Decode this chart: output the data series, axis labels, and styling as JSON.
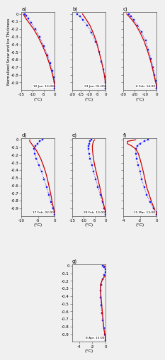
{
  "panels": [
    {
      "label": "a)",
      "date": "10 Jan. 13:00",
      "xlim": [
        -15,
        0
      ],
      "xticks": [
        -15,
        -10,
        -5,
        0
      ],
      "red_x": [
        -14.2,
        -13.8,
        -13.0,
        -11.5,
        -9.5,
        -7.5,
        -5.5,
        -3.8,
        -2.5,
        -1.5,
        -0.8,
        -0.3,
        -0.1,
        -0.05
      ],
      "red_y": [
        0.0,
        -0.02,
        -0.06,
        -0.12,
        -0.2,
        -0.3,
        -0.42,
        -0.54,
        -0.65,
        -0.75,
        -0.83,
        -0.9,
        -0.95,
        -0.98
      ],
      "blue_x": [
        -13.5,
        -13.0,
        -12.0,
        -10.5,
        -8.8,
        -6.8,
        -5.0,
        -3.3,
        -2.0,
        -1.1,
        -0.5,
        -0.2,
        -0.1,
        -0.05
      ],
      "blue_y": [
        0.0,
        -0.02,
        -0.06,
        -0.12,
        -0.2,
        -0.3,
        -0.42,
        -0.54,
        -0.65,
        -0.75,
        -0.83,
        -0.9,
        -0.95,
        -0.98
      ]
    },
    {
      "label": "b)",
      "date": "23 Jan. 01:00",
      "xlim": [
        -20,
        0
      ],
      "xticks": [
        -20,
        -15,
        -10,
        -5,
        0
      ],
      "red_x": [
        -14.0,
        -13.0,
        -11.5,
        -9.5,
        -7.5,
        -5.5,
        -4.0,
        -2.5,
        -1.5,
        -0.7,
        -0.3,
        -0.1,
        -0.05
      ],
      "red_y": [
        0.0,
        -0.03,
        -0.08,
        -0.15,
        -0.25,
        -0.37,
        -0.5,
        -0.63,
        -0.73,
        -0.82,
        -0.9,
        -0.95,
        -0.98
      ],
      "blue_x": [
        -17.0,
        -15.5,
        -13.5,
        -11.0,
        -8.5,
        -6.0,
        -4.0,
        -2.5,
        -1.4,
        -0.6,
        -0.25,
        -0.1,
        -0.05
      ],
      "blue_y": [
        0.0,
        -0.03,
        -0.08,
        -0.15,
        -0.25,
        -0.37,
        -0.5,
        -0.63,
        -0.73,
        -0.82,
        -0.9,
        -0.95,
        -0.98
      ]
    },
    {
      "label": "c)",
      "date": "6 Feb. 14:00",
      "xlim": [
        -30,
        0
      ],
      "xticks": [
        -30,
        -20,
        -10,
        0
      ],
      "red_x": [
        -27.0,
        -25.0,
        -22.0,
        -18.5,
        -15.0,
        -11.5,
        -8.5,
        -6.0,
        -4.0,
        -2.5,
        -1.2,
        -0.4,
        -0.1,
        -0.05
      ],
      "red_y": [
        0.0,
        -0.03,
        -0.08,
        -0.15,
        -0.24,
        -0.35,
        -0.47,
        -0.59,
        -0.7,
        -0.8,
        -0.88,
        -0.93,
        -0.96,
        -0.98
      ],
      "blue_x": [
        -25.0,
        -23.0,
        -20.5,
        -17.0,
        -13.5,
        -10.0,
        -7.5,
        -5.0,
        -3.2,
        -1.8,
        -0.8,
        -0.3,
        -0.1,
        -0.05
      ],
      "blue_y": [
        0.0,
        -0.03,
        -0.08,
        -0.15,
        -0.24,
        -0.35,
        -0.47,
        -0.59,
        -0.7,
        -0.8,
        -0.88,
        -0.93,
        -0.96,
        -0.98
      ]
    },
    {
      "label": "d)",
      "date": "17 Feb. 02:00",
      "xlim": [
        -10,
        0
      ],
      "xticks": [
        -10,
        -5,
        0
      ],
      "red_x": [
        -7.5,
        -7.5,
        -7.0,
        -6.5,
        -5.8,
        -5.0,
        -4.2,
        -3.5,
        -2.8,
        -2.2,
        -1.7,
        -1.2,
        -0.8,
        -0.4,
        -0.1,
        -0.05
      ],
      "red_y": [
        0.0,
        -0.02,
        -0.05,
        -0.08,
        -0.12,
        -0.18,
        -0.25,
        -0.33,
        -0.42,
        -0.52,
        -0.62,
        -0.72,
        -0.82,
        -0.9,
        -0.95,
        -0.98
      ],
      "blue_x": [
        -3.8,
        -4.5,
        -5.2,
        -5.8,
        -6.2,
        -6.0,
        -5.5,
        -4.8,
        -4.0,
        -3.2,
        -2.5,
        -1.8,
        -1.2,
        -0.6,
        -0.2,
        -0.05
      ],
      "blue_y": [
        0.0,
        -0.02,
        -0.05,
        -0.08,
        -0.12,
        -0.18,
        -0.25,
        -0.33,
        -0.42,
        -0.52,
        -0.62,
        -0.72,
        -0.82,
        -0.9,
        -0.95,
        -0.98
      ]
    },
    {
      "label": "e)",
      "date": "29 Feb. 13:00",
      "xlim": [
        -15,
        0
      ],
      "xticks": [
        -15,
        -10,
        -5,
        0
      ],
      "red_x": [
        -5.0,
        -5.5,
        -5.8,
        -6.0,
        -6.0,
        -5.8,
        -5.5,
        -5.0,
        -4.3,
        -3.5,
        -2.7,
        -2.0,
        -1.2,
        -0.5,
        -0.1,
        -0.05
      ],
      "red_y": [
        0.0,
        -0.02,
        -0.05,
        -0.08,
        -0.12,
        -0.18,
        -0.25,
        -0.33,
        -0.42,
        -0.52,
        -0.62,
        -0.72,
        -0.82,
        -0.9,
        -0.95,
        -0.98
      ],
      "blue_x": [
        -6.5,
        -7.0,
        -7.5,
        -7.8,
        -7.8,
        -7.5,
        -7.0,
        -6.3,
        -5.5,
        -4.5,
        -3.5,
        -2.5,
        -1.5,
        -0.7,
        -0.2,
        -0.05
      ],
      "blue_y": [
        0.0,
        -0.02,
        -0.05,
        -0.08,
        -0.12,
        -0.18,
        -0.25,
        -0.33,
        -0.42,
        -0.52,
        -0.62,
        -0.72,
        -0.82,
        -0.9,
        -0.95,
        -0.98
      ]
    },
    {
      "label": "f)",
      "date": "15 Mar. 13:00",
      "xlim": [
        -4,
        0
      ],
      "xticks": [
        -4,
        -2,
        0
      ],
      "red_x": [
        -2.5,
        -3.5,
        -3.5,
        -3.0,
        -2.5,
        -2.2,
        -2.0,
        -1.8,
        -1.6,
        -1.4,
        -1.2,
        -0.9,
        -0.6,
        -0.3,
        -0.1,
        -0.05
      ],
      "red_y": [
        0.0,
        -0.02,
        -0.05,
        -0.08,
        -0.12,
        -0.18,
        -0.25,
        -0.33,
        -0.42,
        -0.52,
        -0.62,
        -0.72,
        -0.82,
        -0.9,
        -0.95,
        -0.98
      ],
      "blue_x": [
        -1.0,
        -1.5,
        -2.0,
        -2.3,
        -2.5,
        -2.5,
        -2.4,
        -2.2,
        -2.0,
        -1.8,
        -1.5,
        -1.2,
        -0.8,
        -0.4,
        -0.15,
        -0.05
      ],
      "blue_y": [
        0.0,
        -0.02,
        -0.05,
        -0.08,
        -0.12,
        -0.18,
        -0.25,
        -0.33,
        -0.42,
        -0.52,
        -0.62,
        -0.72,
        -0.82,
        -0.9,
        -0.95,
        -0.98
      ]
    },
    {
      "label": "g)",
      "date": "8 Apr. 13:00",
      "xlim": [
        -5,
        0
      ],
      "xticks": [
        -4,
        -2,
        0
      ],
      "red_x": [
        -0.3,
        0.2,
        0.5,
        0.3,
        0.0,
        -0.5,
        -0.8,
        -0.8,
        -0.7,
        -0.6,
        -0.5,
        -0.4,
        -0.3,
        -0.15,
        -0.05
      ],
      "red_y": [
        0.0,
        -0.02,
        -0.05,
        -0.08,
        -0.12,
        -0.18,
        -0.25,
        -0.33,
        -0.42,
        -0.52,
        -0.62,
        -0.72,
        -0.82,
        -0.9,
        -0.98
      ],
      "blue_x": [
        -0.5,
        -0.2,
        0.0,
        0.0,
        -0.2,
        -0.5,
        -0.7,
        -0.8,
        -0.8,
        -0.7,
        -0.6,
        -0.45,
        -0.3,
        -0.15,
        -0.05
      ],
      "blue_y": [
        0.0,
        -0.02,
        -0.05,
        -0.08,
        -0.12,
        -0.18,
        -0.25,
        -0.33,
        -0.42,
        -0.52,
        -0.62,
        -0.72,
        -0.82,
        -0.9,
        -0.98
      ]
    }
  ],
  "ylabel": "Normalized Snow and Ice Thickness",
  "xlabel_unit": "(°C)",
  "red_color": "#cc0000",
  "blue_color": "#1a1aff",
  "background": "#f0f0f0",
  "yticks": [
    0,
    -0.1,
    -0.2,
    -0.3,
    -0.4,
    -0.5,
    -0.6,
    -0.7,
    -0.8,
    -0.9
  ],
  "ylim": [
    -1.0,
    0.02
  ]
}
